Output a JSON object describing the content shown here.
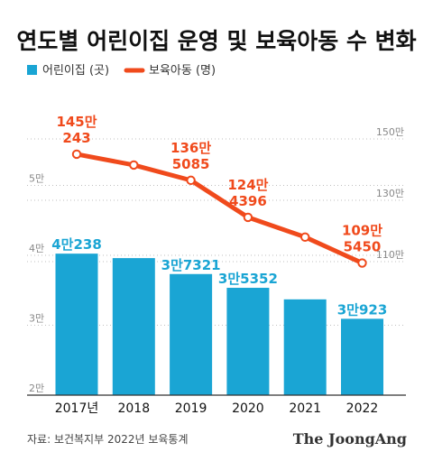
{
  "title": "연도별 어린이집 운영 및 보육아동 수 변화",
  "legend": {
    "bar_label": "어린이집 (곳)",
    "line_label": "보육아동 (명)"
  },
  "source": "자료: 보건복지부 2022년 보육통계",
  "brand": "The JoongAng",
  "colors": {
    "bar": "#1aa5d4",
    "line": "#f04a1c",
    "bar_label": "#1aa5d4",
    "line_label": "#f04a1c"
  },
  "chart_data": {
    "type": "bar+line",
    "categories": [
      "2017년",
      "2018",
      "2019",
      "2020",
      "2021",
      "2022"
    ],
    "bar_series": {
      "name": "어린이집 (곳)",
      "values": [
        40238,
        39600,
        37321,
        35352,
        33700,
        30923
      ],
      "data_labels": [
        "4만238",
        "",
        "3만7321",
        "3만5352",
        "",
        "3만923"
      ]
    },
    "line_series": {
      "name": "보육아동 (명)",
      "values": [
        1450243,
        1415000,
        1365085,
        1244396,
        1180000,
        1095450
      ],
      "data_labels": [
        {
          "top": "145만",
          "bottom": "243"
        },
        null,
        {
          "top": "136만",
          "bottom": "5085"
        },
        {
          "top": "124만",
          "bottom": "4396"
        },
        null,
        {
          "top": "109만",
          "bottom": "5450"
        }
      ]
    },
    "left_axis": {
      "ylim": [
        20000,
        70000
      ],
      "ticks": [
        {
          "value": 20000,
          "label": "2만"
        },
        {
          "value": 30000,
          "label": "3만"
        },
        {
          "value": 40000,
          "label": "4만"
        },
        {
          "value": 50000,
          "label": "5만"
        }
      ]
    },
    "right_axis": {
      "ylim": [
        1000000,
        1600000
      ],
      "ticks": [
        {
          "value": 1100000,
          "label": "110만"
        },
        {
          "value": 1300000,
          "label": "130만"
        },
        {
          "value": 1500000,
          "label": "150만"
        }
      ]
    },
    "grid": "dotted horizontal"
  }
}
